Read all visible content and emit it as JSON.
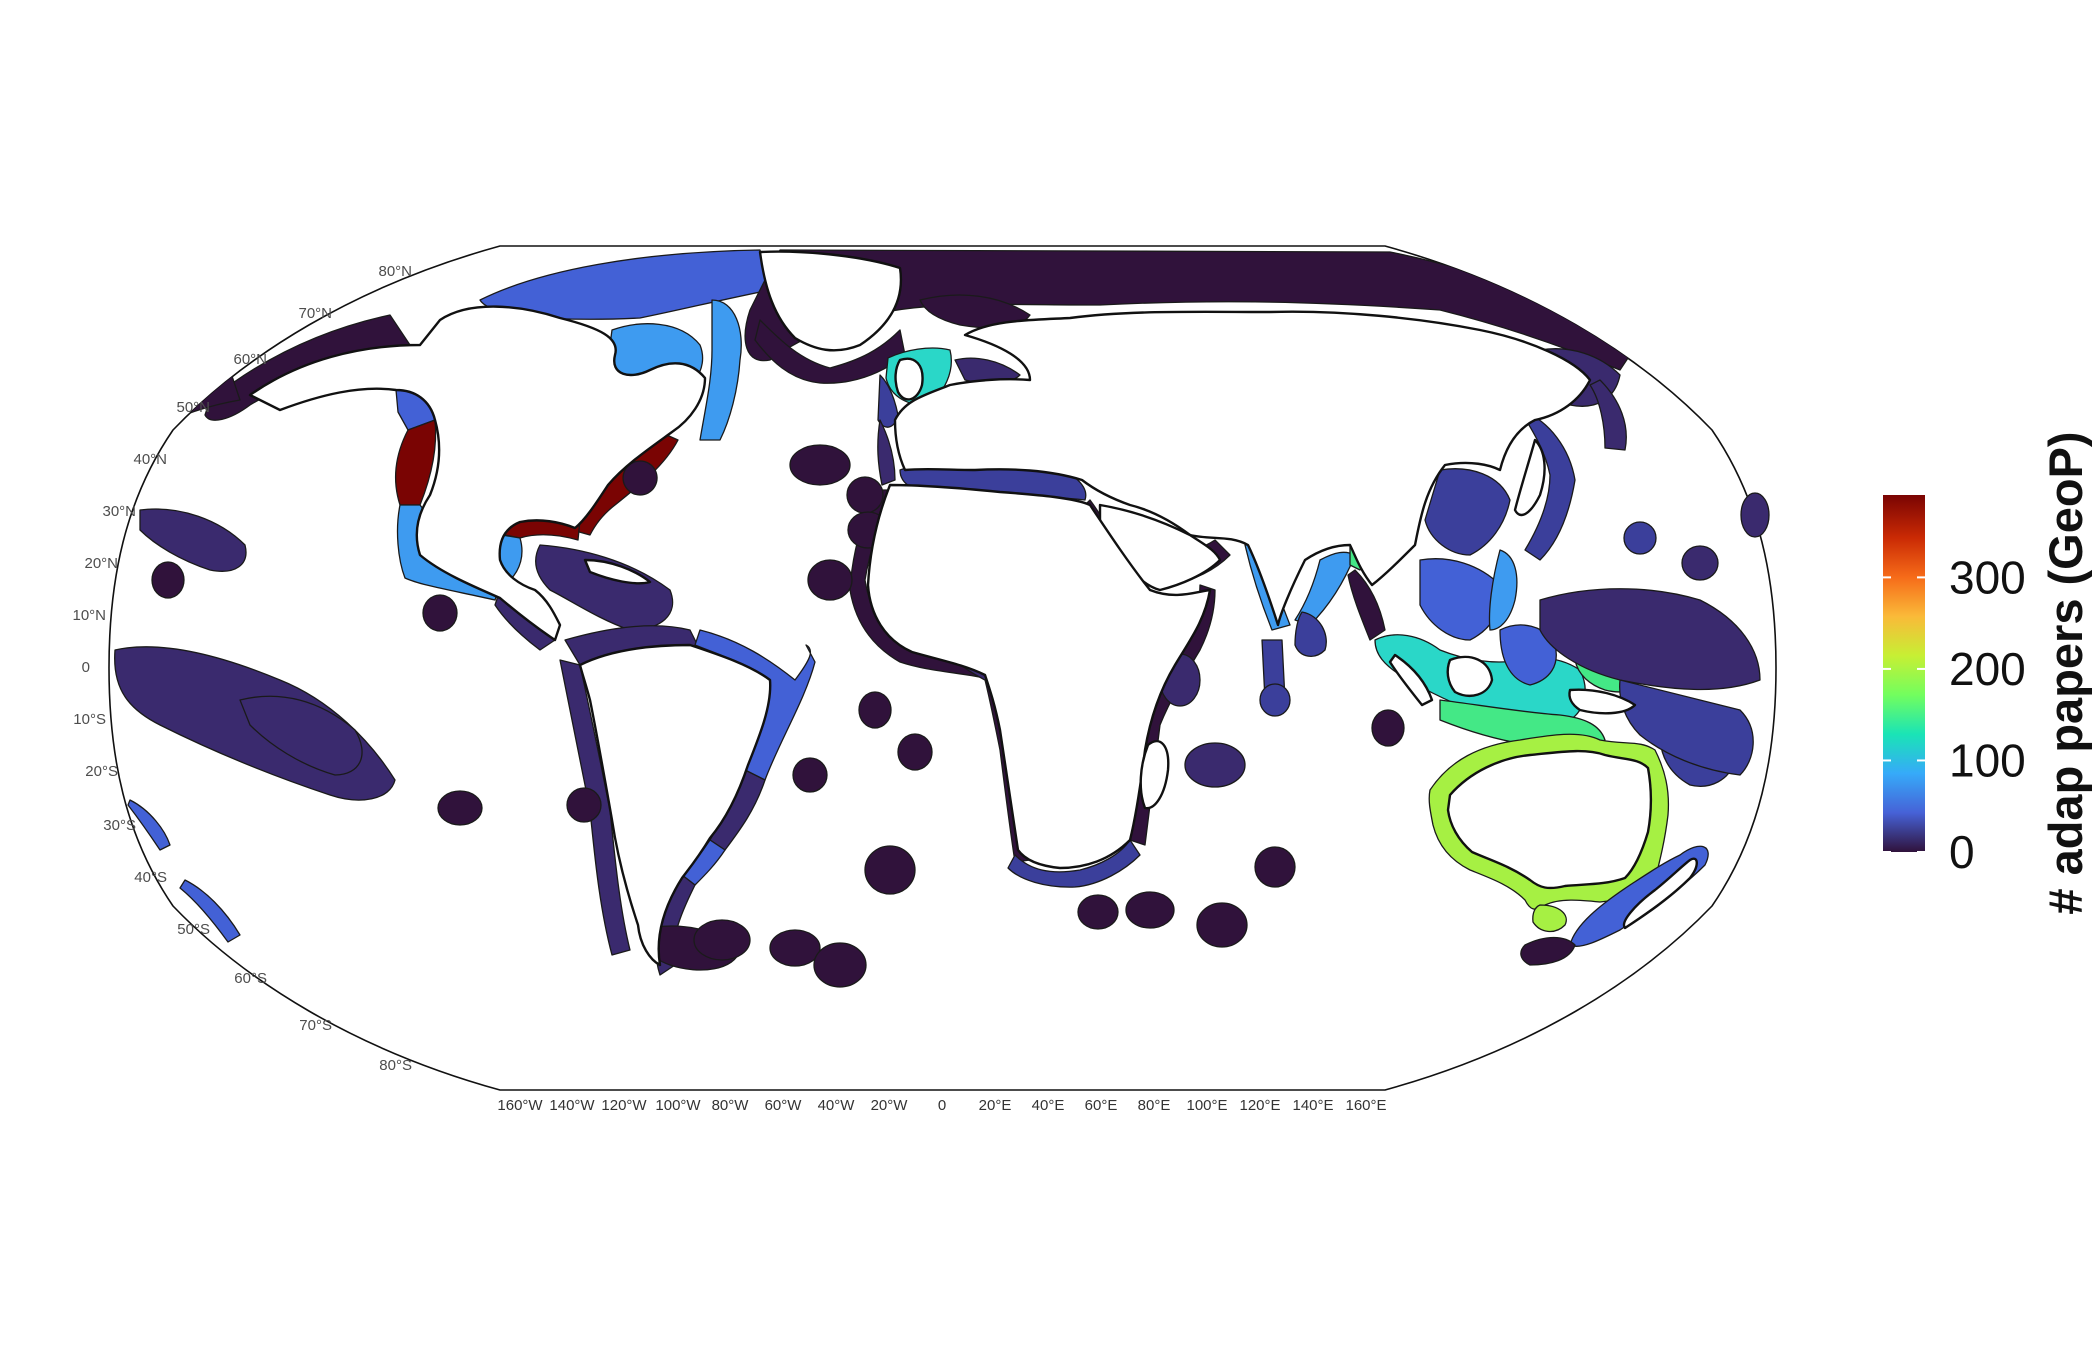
{
  "map": {
    "projection": "Robinson",
    "lat_labels": [
      "80°N",
      "70°N",
      "60°N",
      "50°N",
      "40°N",
      "30°N",
      "20°N",
      "10°N",
      "0",
      "10°S",
      "20°S",
      "30°S",
      "40°S",
      "50°S",
      "60°S",
      "70°S",
      "80°S"
    ],
    "lon_labels": [
      "160°W",
      "140°W",
      "120°W",
      "100°W",
      "80°W",
      "60°W",
      "40°W",
      "20°W",
      "0",
      "20°E",
      "40°E",
      "60°E",
      "80°E",
      "100°E",
      "120°E",
      "140°E",
      "160°E"
    ],
    "colors": {
      "c0": "#30123b",
      "c1": "#3a2a6e",
      "c2": "#3b3f9b",
      "c3": "#4361d6",
      "c4": "#3e9bf0",
      "c5": "#2ad7c8",
      "c6": "#44e886",
      "c7": "#a6f043",
      "c8": "#7a0403",
      "border": "#111111"
    }
  },
  "legend": {
    "title": "# adap papers (GeoP)",
    "ticks": [
      "0",
      "100",
      "200",
      "300"
    ],
    "tick_values": [
      0,
      100,
      200,
      300
    ],
    "max": 390,
    "gradient": [
      "#30123b",
      "#4662d7",
      "#36aaf9",
      "#1ae4b6",
      "#72fe5e",
      "#c7ef34",
      "#faba39",
      "#f66b19",
      "#ca2a04",
      "#7a0403"
    ]
  }
}
